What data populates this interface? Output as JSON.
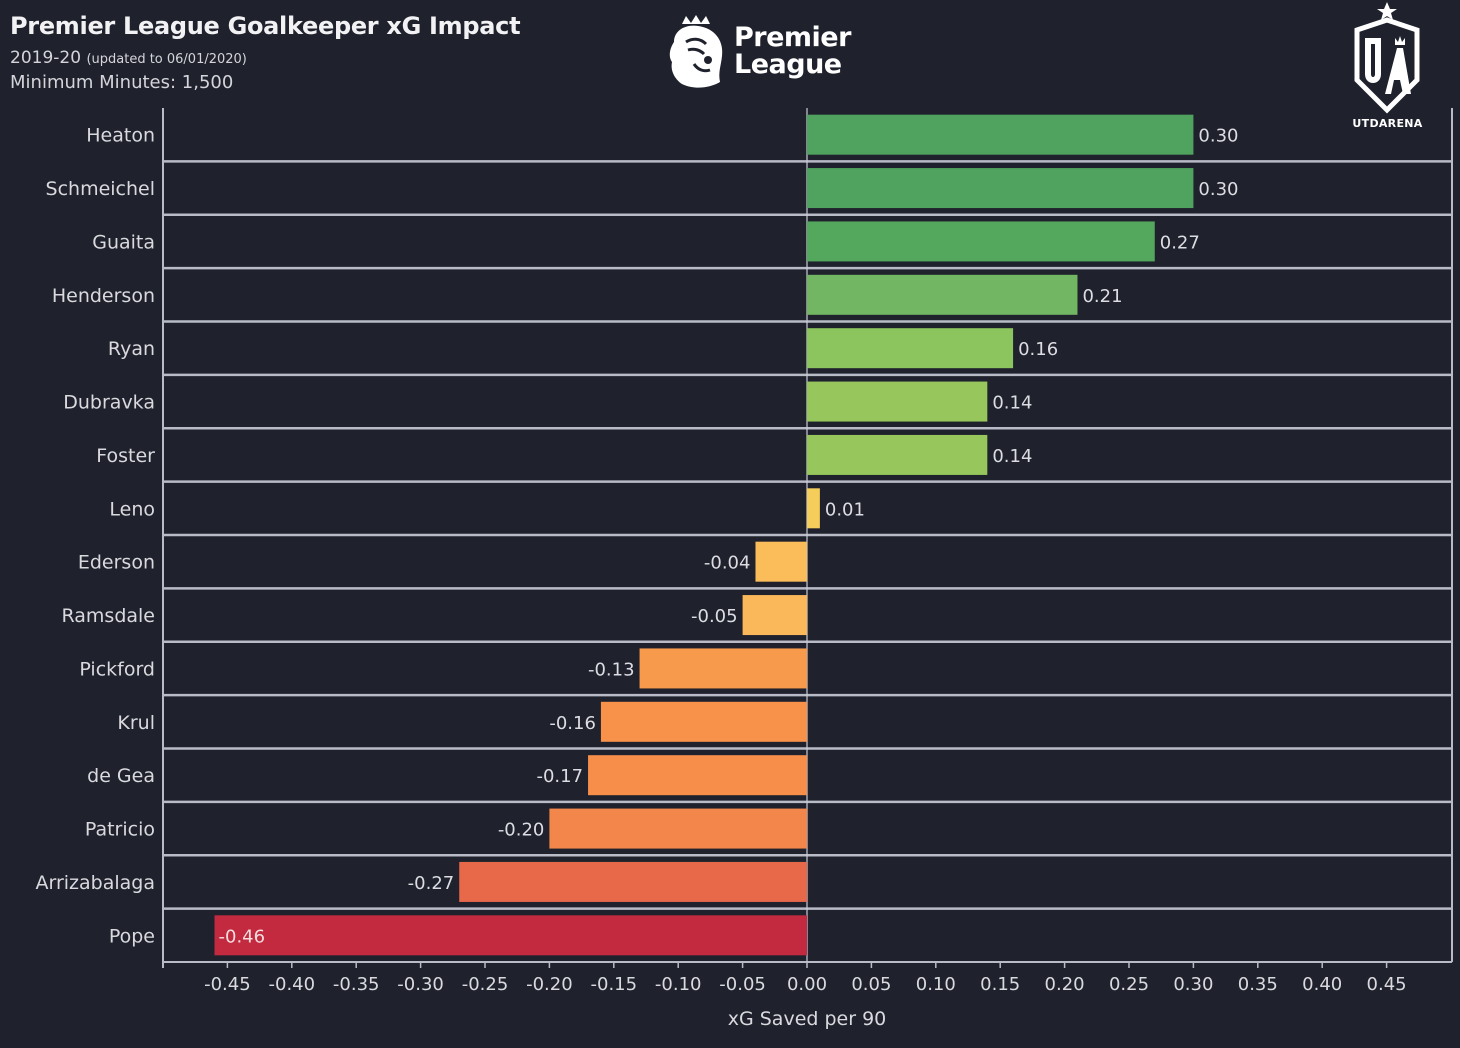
{
  "header": {
    "title": "Premier League Goalkeeper xG Impact",
    "season": "2019-20",
    "updated": "(updated to 06/01/2020)",
    "min_minutes": "Minimum Minutes: 1,500"
  },
  "logos": {
    "premier_league": {
      "line1": "Premier",
      "line2": "League"
    },
    "utdarena": {
      "text": "UTDARENA",
      "monogram": "UA"
    }
  },
  "colors": {
    "background": "#1f222d",
    "gridline": "#b9bcc6",
    "text": "#d9d9de"
  },
  "chart_data": {
    "type": "bar",
    "orientation": "horizontal",
    "title": "Premier League Goalkeeper xG Impact",
    "subtitle": "2019-20 (updated to 06/01/2020) — Minimum Minutes: 1,500",
    "xlabel": "xG Saved per 90",
    "ylabel": "",
    "xlim": [
      -0.5,
      0.5
    ],
    "grid": "horizontal row separators",
    "xticks": [
      "-0.45",
      "-0.40",
      "-0.35",
      "-0.30",
      "-0.25",
      "-0.20",
      "-0.15",
      "-0.10",
      "-0.05",
      "0.00",
      "0.05",
      "0.10",
      "0.15",
      "0.20",
      "0.25",
      "0.30",
      "0.35",
      "0.40",
      "0.45"
    ],
    "xtick_values": [
      -0.45,
      -0.4,
      -0.35,
      -0.3,
      -0.25,
      -0.2,
      -0.15,
      -0.1,
      -0.05,
      0.0,
      0.05,
      0.1,
      0.15,
      0.2,
      0.25,
      0.3,
      0.35,
      0.4,
      0.45
    ],
    "categories": [
      "Heaton",
      "Schmeichel",
      "Guaita",
      "Henderson",
      "Ryan",
      "Dubravka",
      "Foster",
      "Leno",
      "Ederson",
      "Ramsdale",
      "Pickford",
      "Krul",
      "de Gea",
      "Patricio",
      "Arrizabalaga",
      "Pope"
    ],
    "values": [
      0.3,
      0.3,
      0.27,
      0.21,
      0.16,
      0.14,
      0.14,
      0.01,
      -0.04,
      -0.05,
      -0.13,
      -0.16,
      -0.17,
      -0.2,
      -0.27,
      -0.46
    ],
    "value_labels": [
      "0.30",
      "0.30",
      "0.27",
      "0.21",
      "0.16",
      "0.14",
      "0.14",
      "0.01",
      "-0.04",
      "-0.05",
      "-0.13",
      "-0.16",
      "-0.17",
      "-0.20",
      "-0.27",
      "-0.46"
    ],
    "bar_colors": [
      "#4fa35e",
      "#4fa35e",
      "#53a85e",
      "#72b562",
      "#8cc45e",
      "#96c65c",
      "#96c65c",
      "#f5cd5a",
      "#fbbc5a",
      "#fbb85a",
      "#f89a4c",
      "#f8924a",
      "#f78e4a",
      "#f3864a",
      "#e8694a",
      "#c3293f"
    ]
  }
}
